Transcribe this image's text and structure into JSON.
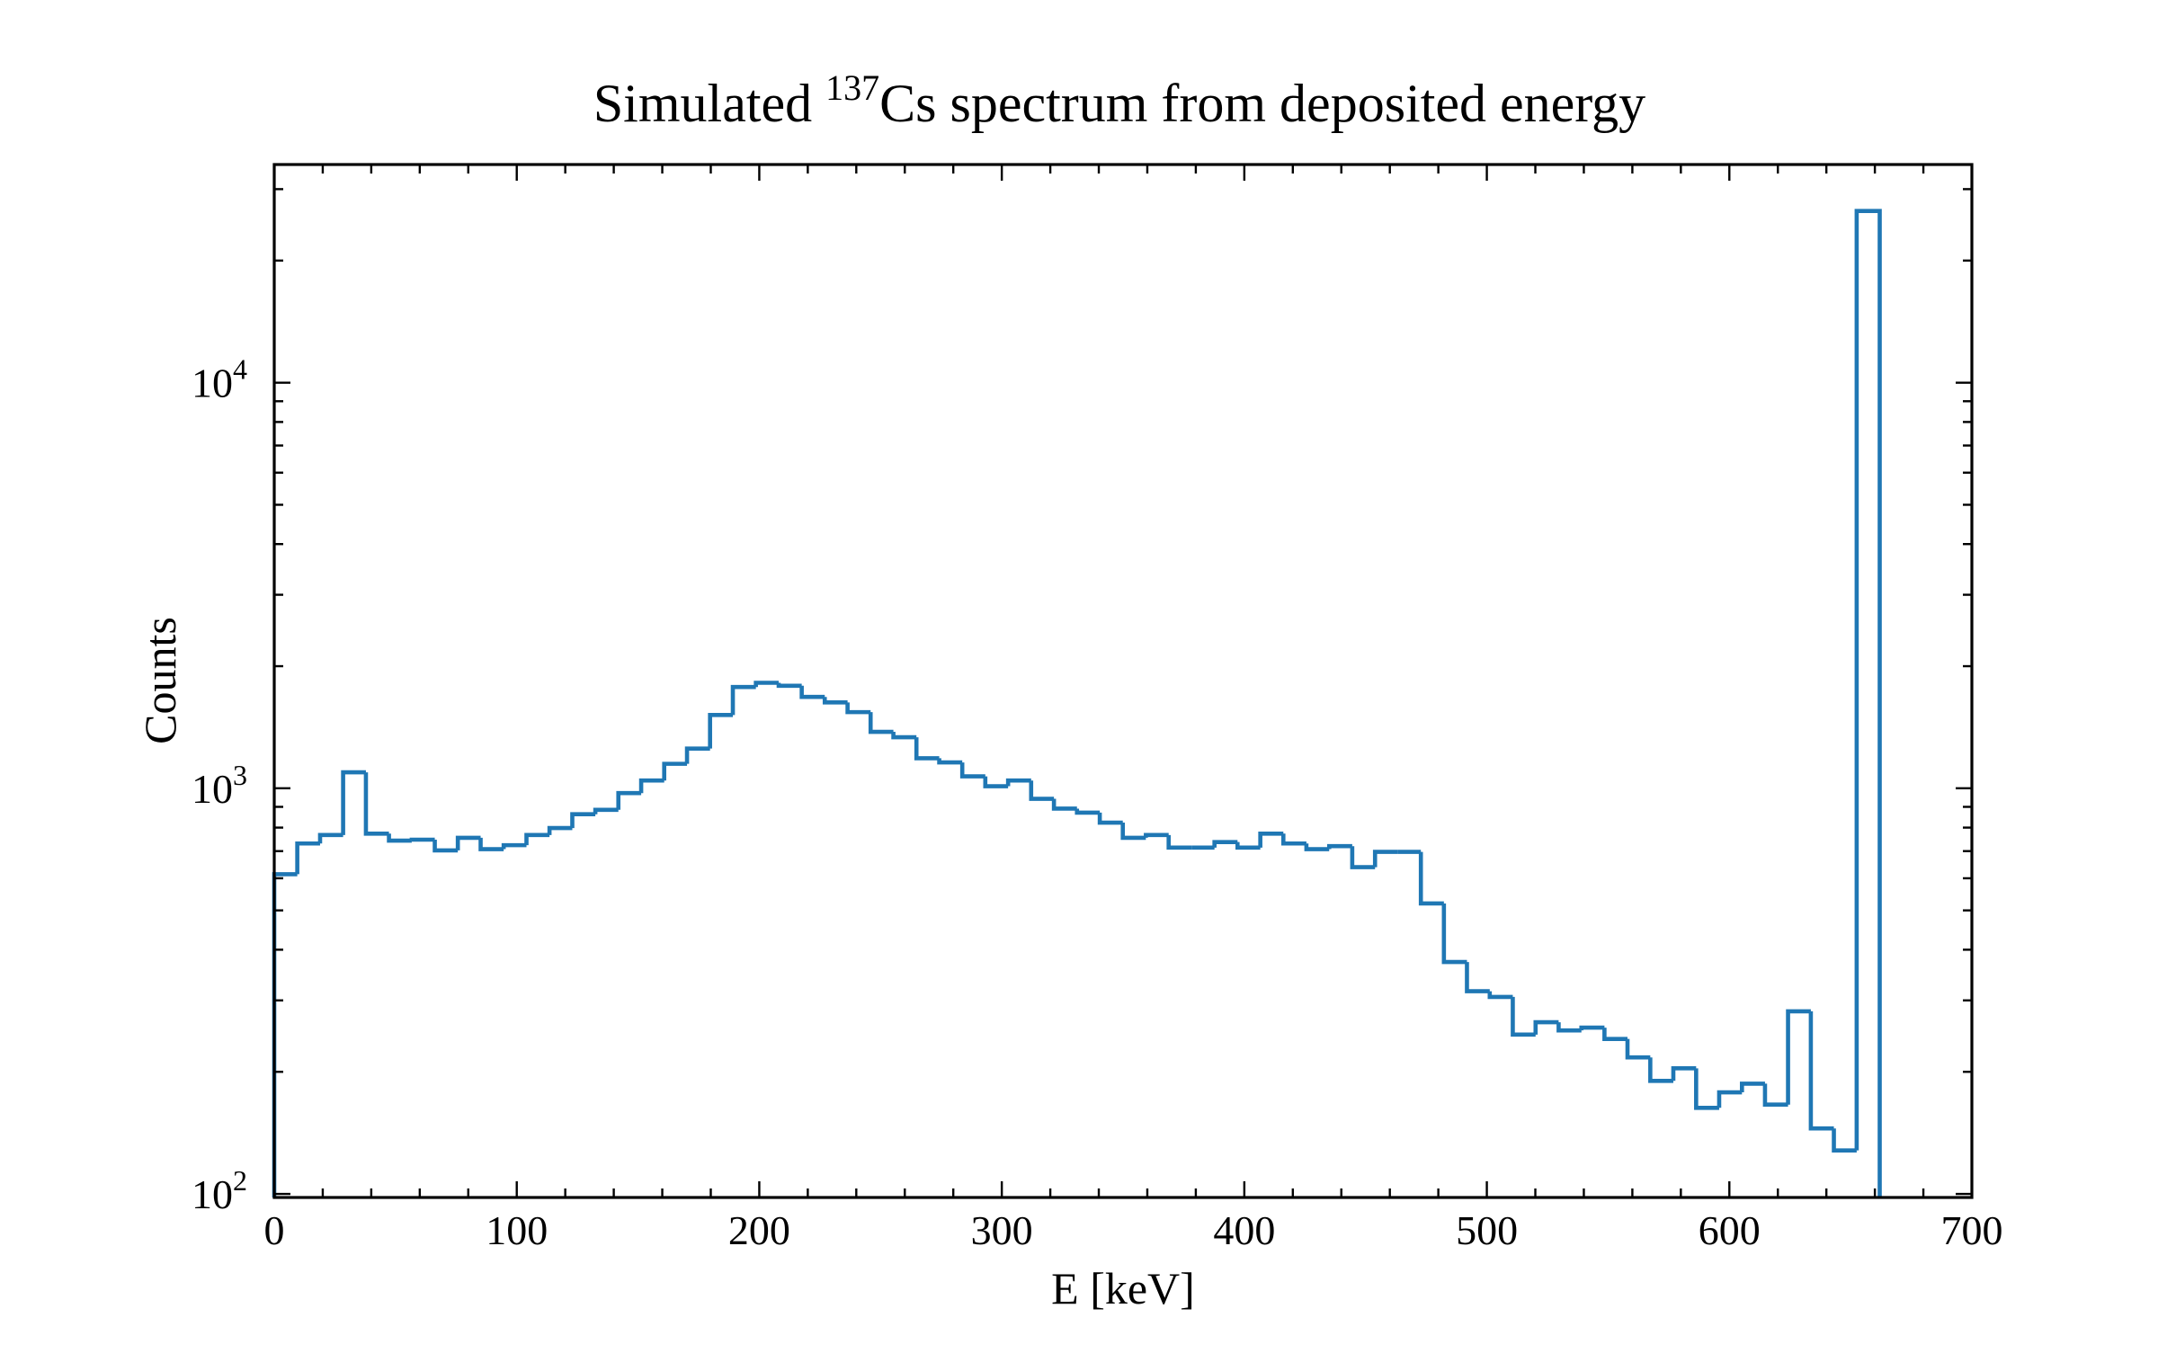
{
  "chart_data": {
    "type": "histogram",
    "title": [
      "Simulated ",
      "137",
      "Cs spectrum from deposited energy"
    ],
    "x_label": "E [keV]",
    "y_label": "Counts",
    "color": "#1f77b4",
    "log_y": true,
    "xlim": [
      0,
      700
    ],
    "xticks": [
      0,
      100,
      200,
      300,
      400,
      500,
      600,
      700
    ],
    "xminorticks": [
      20,
      40,
      60,
      80,
      120,
      140,
      160,
      180,
      220,
      240,
      260,
      280,
      320,
      340,
      360,
      380,
      420,
      440,
      460,
      480,
      520,
      540,
      560,
      580,
      620,
      640,
      660,
      680
    ],
    "ylim": [
      98,
      34500
    ],
    "yticks": [
      {
        "value": 100,
        "label": "10",
        "power": "2"
      },
      {
        "value": 1000,
        "label": "10",
        "power": "3"
      },
      {
        "value": 10000,
        "label": "10",
        "power": "4"
      }
    ],
    "yminorticks": [
      200,
      300,
      400,
      500,
      600,
      700,
      800,
      900,
      2000,
      3000,
      4000,
      5000,
      6000,
      7000,
      8000,
      9000,
      20000,
      30000
    ],
    "bins": [
      0,
      9.5,
      18.9,
      28.4,
      37.8,
      47.3,
      56.7,
      66.2,
      75.7,
      85.1,
      94.6,
      104,
      113.5,
      122.9,
      132.4,
      141.9,
      151.3,
      160.8,
      170.2,
      179.7,
      189.1,
      198.6,
      208,
      217.5,
      227,
      236.4,
      245.9,
      255.3,
      264.8,
      274.2,
      283.7,
      293.2,
      302.6,
      312.1,
      321.5,
      331,
      340.4,
      349.9,
      359.4,
      368.8,
      378.3,
      387.7,
      397.2,
      406.6,
      416.1,
      425.6,
      435,
      444.5,
      453.9,
      463.4,
      472.8,
      482.3,
      491.8,
      501.2,
      510.7,
      520.1,
      529.6,
      539,
      548.5,
      558,
      567.4,
      576.9,
      586.3,
      595.8,
      605.2,
      614.7,
      624.2,
      633.6,
      643.1,
      652.5,
      662
    ],
    "values": [
      614,
      731,
      767,
      1095,
      773,
      743,
      747,
      703,
      755,
      708,
      724,
      767,
      798,
      863,
      885,
      973,
      1045,
      1149,
      1253,
      1516,
      1777,
      1820,
      1790,
      1680,
      1628,
      1541,
      1378,
      1336,
      1186,
      1158,
      1070,
      1012,
      1045,
      942,
      891,
      871,
      823,
      755,
      767,
      714,
      714,
      737,
      714,
      773,
      731,
      708,
      720,
      639,
      697,
      697,
      520,
      373,
      316,
      306,
      247,
      265,
      253,
      257,
      241,
      217,
      190,
      204,
      163,
      178,
      187,
      166,
      282,
      145,
      128,
      26500
    ]
  }
}
